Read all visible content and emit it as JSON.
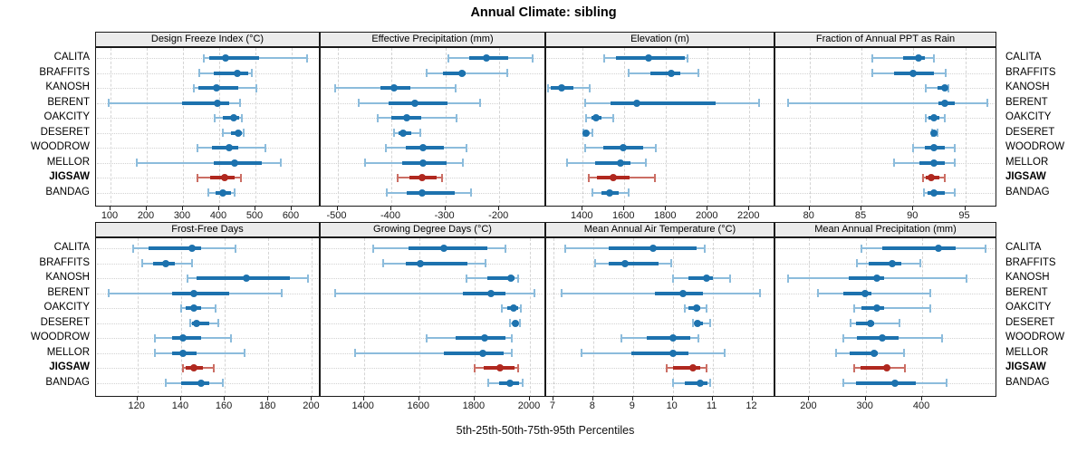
{
  "title": "Annual Climate: sibling",
  "caption": "5th-25th-50th-75th-95th Percentiles",
  "stations": [
    "CALITA",
    "BRAFFITS",
    "KANOSH",
    "BERENT",
    "OAKCITY",
    "DESERET",
    "WOODROW",
    "MELLOR",
    "JIGSAW",
    "BANDAG"
  ],
  "highlight_station": "JIGSAW",
  "colors": {
    "series": "#1d72ae",
    "series_light": "#8cbcdc",
    "highlight": "#b0281f",
    "highlight_light": "#cb6e64",
    "strip_bg": "#ebebeb",
    "grid": "#d4d4d4",
    "border": "#1a1a1a"
  },
  "chart_data": [
    {
      "type": "dotplot-percentiles",
      "title": "Design Freeze Index (°C)",
      "grid_position": {
        "row": 0,
        "col": 0
      },
      "xlim": [
        60,
        680
      ],
      "ticks": [
        100,
        200,
        300,
        400,
        500,
        600
      ],
      "percentile_labels": [
        "5th",
        "25th",
        "50th",
        "75th",
        "95th"
      ],
      "values": {
        "CALITA": [
          358,
          372,
          418,
          510,
          642
        ],
        "BRAFFITS": [
          345,
          385,
          450,
          480,
          490
        ],
        "KANOSH": [
          330,
          342,
          393,
          452,
          502
        ],
        "BERENT": [
          95,
          297,
          396,
          427,
          458
        ],
        "OAKCITY": [
          387,
          410,
          440,
          456,
          462
        ],
        "DESERET": [
          410,
          433,
          452,
          463,
          468
        ],
        "WOODROW": [
          341,
          381,
          427,
          452,
          528
        ],
        "MELLOR": [
          172,
          385,
          442,
          518,
          571
        ],
        "JIGSAW": [
          341,
          375,
          414,
          443,
          460
        ],
        "BANDAG": [
          371,
          389,
          410,
          433,
          443
        ]
      }
    },
    {
      "type": "dotplot-percentiles",
      "title": "Effective Precipitation (mm)",
      "grid_position": {
        "row": 0,
        "col": 1
      },
      "xlim": [
        -531,
        -113
      ],
      "ticks": [
        -500,
        -400,
        -300,
        -200
      ],
      "percentile_labels": [
        "5th",
        "25th",
        "50th",
        "75th",
        "95th"
      ],
      "values": {
        "CALITA": [
          -295,
          -255,
          -224,
          -184,
          -138
        ],
        "BRAFFITS": [
          -335,
          -305,
          -270,
          -262,
          -185
        ],
        "KANOSH": [
          -505,
          -420,
          -395,
          -364,
          -281
        ],
        "BERENT": [
          -461,
          -405,
          -356,
          -296,
          -235
        ],
        "OAKCITY": [
          -426,
          -400,
          -372,
          -344,
          -280
        ],
        "DESERET": [
          -395,
          -387,
          -379,
          -363,
          -346
        ],
        "WOODROW": [
          -411,
          -374,
          -342,
          -302,
          -260
        ],
        "MELLOR": [
          -449,
          -380,
          -342,
          -298,
          -267
        ],
        "JIGSAW": [
          -388,
          -366,
          -343,
          -316,
          -306
        ],
        "BANDAG": [
          -408,
          -372,
          -343,
          -282,
          -253
        ]
      }
    },
    {
      "type": "dotplot-percentiles",
      "title": "Elevation (m)",
      "grid_position": {
        "row": 0,
        "col": 2
      },
      "xlim": [
        1225,
        2325
      ],
      "ticks": [
        1400,
        1600,
        1800,
        2000,
        2200
      ],
      "percentile_labels": [
        "5th",
        "25th",
        "50th",
        "75th",
        "95th"
      ],
      "values": {
        "CALITA": [
          1505,
          1560,
          1715,
          1890,
          1902
        ],
        "BRAFFITS": [
          1620,
          1725,
          1825,
          1870,
          1955
        ],
        "KANOSH": [
          1232,
          1246,
          1300,
          1355,
          1435
        ],
        "BERENT": [
          1412,
          1535,
          1660,
          2040,
          2248
        ],
        "OAKCITY": [
          1415,
          1440,
          1465,
          1490,
          1545
        ],
        "DESERET": [
          1404,
          1409,
          1416,
          1430,
          1445
        ],
        "WOODROW": [
          1410,
          1500,
          1595,
          1690,
          1750
        ],
        "MELLOR": [
          1326,
          1458,
          1580,
          1630,
          1704
        ],
        "JIGSAW": [
          1429,
          1470,
          1546,
          1624,
          1746
        ],
        "BANDAG": [
          1445,
          1491,
          1530,
          1571,
          1619
        ]
      }
    },
    {
      "type": "dotplot-percentiles",
      "title": "Fraction of Annual PPT as Rain",
      "grid_position": {
        "row": 0,
        "col": 3
      },
      "xlim": [
        76.7,
        98.1
      ],
      "ticks": [
        80,
        85,
        90,
        95
      ],
      "percentile_labels": [
        "5th",
        "25th",
        "50th",
        "75th",
        "95th"
      ],
      "values": {
        "CALITA": [
          86.0,
          89.0,
          90.5,
          91.1,
          92.0
        ],
        "BRAFFITS": [
          86.0,
          88.1,
          90.0,
          92.0,
          93.1
        ],
        "KANOSH": [
          91.2,
          92.3,
          93.0,
          93.2,
          93.4
        ],
        "BERENT": [
          77.9,
          92.4,
          93.0,
          94.0,
          97.1
        ],
        "OAKCITY": [
          91.2,
          91.5,
          92.0,
          92.5,
          93.0
        ],
        "DESERET": [
          91.8,
          91.9,
          92.0,
          92.1,
          92.3
        ],
        "WOODROW": [
          90.0,
          91.1,
          92.0,
          93.0,
          94.0
        ],
        "MELLOR": [
          88.1,
          90.6,
          92.0,
          93.0,
          94.0
        ],
        "JIGSAW": [
          90.9,
          91.2,
          91.7,
          92.5,
          93.0
        ],
        "BANDAG": [
          91.0,
          91.4,
          92.0,
          93.0,
          94.0
        ]
      }
    },
    {
      "type": "dotplot-percentiles",
      "title": "Frost-Free Days",
      "grid_position": {
        "row": 1,
        "col": 0
      },
      "xlim": [
        101,
        204
      ],
      "ticks": [
        120,
        140,
        160,
        180,
        200
      ],
      "percentile_labels": [
        "5th",
        "25th",
        "50th",
        "75th",
        "95th"
      ],
      "values": {
        "CALITA": [
          118,
          125,
          145,
          149,
          165
        ],
        "BRAFFITS": [
          122,
          127,
          133,
          137,
          145
        ],
        "KANOSH": [
          143,
          147,
          170,
          190,
          198
        ],
        "BERENT": [
          107,
          136,
          146,
          162,
          186
        ],
        "OAKCITY": [
          140,
          142,
          146,
          149,
          156
        ],
        "DESERET": [
          144,
          145,
          147,
          153,
          157
        ],
        "WOODROW": [
          128,
          136,
          141,
          149,
          163
        ],
        "MELLOR": [
          128,
          136,
          141,
          147,
          169
        ],
        "JIGSAW": [
          141,
          142,
          146,
          150,
          155
        ],
        "BANDAG": [
          133,
          140,
          149,
          153,
          159
        ]
      }
    },
    {
      "type": "dotplot-percentiles",
      "title": "Growing Degree Days (°C)",
      "grid_position": {
        "row": 1,
        "col": 1
      },
      "xlim": [
        1244,
        2059
      ],
      "ticks": [
        1400,
        1600,
        1800,
        2000
      ],
      "percentile_labels": [
        "5th",
        "25th",
        "50th",
        "75th",
        "95th"
      ],
      "values": {
        "CALITA": [
          1434,
          1560,
          1688,
          1845,
          1913
        ],
        "BRAFFITS": [
          1470,
          1550,
          1605,
          1775,
          1840
        ],
        "KANOSH": [
          1770,
          1845,
          1932,
          1946,
          1958
        ],
        "BERENT": [
          1296,
          1758,
          1860,
          1911,
          2015
        ],
        "OAKCITY": [
          1898,
          1917,
          1940,
          1957,
          1966
        ],
        "DESERET": [
          1928,
          1938,
          1946,
          1957,
          1963
        ],
        "WOODROW": [
          1627,
          1731,
          1835,
          1911,
          1933
        ],
        "MELLOR": [
          1368,
          1690,
          1830,
          1905,
          1933
        ],
        "JIGSAW": [
          1800,
          1832,
          1893,
          1946,
          1958
        ],
        "BANDAG": [
          1848,
          1890,
          1928,
          1962,
          1974
        ]
      }
    },
    {
      "type": "dotplot-percentiles",
      "title": "Mean Annual Air Temperature (°C)",
      "grid_position": {
        "row": 1,
        "col": 2
      },
      "xlim": [
        6.82,
        12.58
      ],
      "ticks": [
        7,
        8,
        9,
        10,
        11,
        12
      ],
      "percentile_labels": [
        "5th",
        "25th",
        "50th",
        "75th",
        "95th"
      ],
      "values": {
        "CALITA": [
          7.3,
          8.4,
          9.5,
          10.6,
          10.8
        ],
        "BRAFFITS": [
          8.05,
          8.4,
          8.8,
          9.65,
          9.95
        ],
        "KANOSH": [
          10.0,
          10.4,
          10.85,
          11.0,
          11.45
        ],
        "BERENT": [
          7.2,
          9.55,
          10.25,
          10.75,
          12.2
        ],
        "OAKCITY": [
          10.3,
          10.4,
          10.6,
          10.7,
          10.85
        ],
        "DESERET": [
          10.5,
          10.55,
          10.62,
          10.75,
          10.95
        ],
        "WOODROW": [
          8.7,
          9.35,
          10.0,
          10.45,
          10.65
        ],
        "MELLOR": [
          7.7,
          8.95,
          10.0,
          10.4,
          11.3
        ],
        "JIGSAW": [
          9.85,
          10.0,
          10.5,
          10.7,
          10.85
        ],
        "BANDAG": [
          10.0,
          10.3,
          10.7,
          10.88,
          10.95
        ]
      }
    },
    {
      "type": "dotplot-percentiles",
      "title": "Mean Annual Precipitation (mm)",
      "grid_position": {
        "row": 1,
        "col": 3
      },
      "xlim": [
        140,
        533
      ],
      "ticks": [
        200,
        300,
        400
      ],
      "percentile_labels": [
        "5th",
        "25th",
        "50th",
        "75th",
        "95th"
      ],
      "values": {
        "CALITA": [
          293,
          330,
          428,
          460,
          512
        ],
        "BRAFFITS": [
          285,
          305,
          347,
          363,
          397
        ],
        "KANOSH": [
          163,
          270,
          320,
          332,
          479
        ],
        "BERENT": [
          215,
          260,
          299,
          310,
          415
        ],
        "OAKCITY": [
          279,
          292,
          320,
          332,
          414
        ],
        "DESERET": [
          273,
          282,
          308,
          315,
          360
        ],
        "WOODROW": [
          260,
          284,
          330,
          358,
          435
        ],
        "MELLOR": [
          248,
          272,
          315,
          322,
          367
        ],
        "JIGSAW": [
          279,
          291,
          337,
          343,
          370
        ],
        "BANDAG": [
          260,
          283,
          352,
          388,
          443
        ]
      }
    }
  ]
}
